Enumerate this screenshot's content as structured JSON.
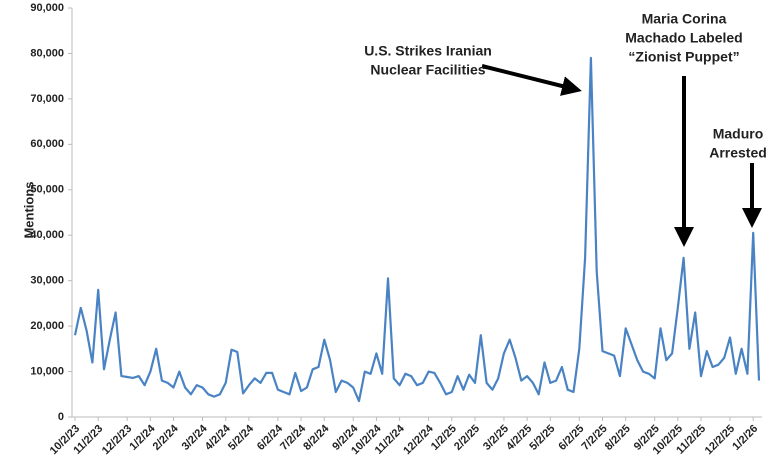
{
  "chart_data": {
    "type": "line",
    "y_label": "Mentions",
    "categories": [
      "10/2/23",
      null,
      null,
      null,
      "11/2/23",
      null,
      null,
      null,
      null,
      "12/2/23",
      null,
      null,
      null,
      "1/2/24",
      null,
      null,
      null,
      "2/2/24",
      null,
      null,
      null,
      null,
      "3/2/24",
      null,
      null,
      null,
      "4/2/24",
      null,
      null,
      null,
      "5/2/24",
      null,
      null,
      null,
      null,
      "6/2/24",
      null,
      null,
      null,
      "7/2/24",
      null,
      null,
      null,
      "8/2/24",
      null,
      null,
      null,
      null,
      "9/2/24",
      null,
      null,
      null,
      "10/2/24",
      null,
      null,
      null,
      "11/2/24",
      null,
      null,
      null,
      null,
      "12/2/24",
      null,
      null,
      null,
      "1/2/25",
      null,
      null,
      null,
      "2/2/25",
      null,
      null,
      null,
      null,
      "3/2/25",
      null,
      null,
      null,
      "4/2/25",
      null,
      null,
      null,
      "5/2/25",
      null,
      null,
      null,
      null,
      "6/2/25",
      null,
      null,
      null,
      "7/2/25",
      null,
      null,
      null,
      "8/2/25",
      null,
      null,
      null,
      null,
      "9/2/25",
      null,
      null,
      null,
      "10/2/25",
      null,
      null,
      null,
      "11/2/25",
      null,
      null,
      null,
      null,
      "12/2/25",
      null,
      null,
      null,
      "1/2/26",
      null
    ],
    "series": [
      {
        "name": "Mentions",
        "color": "#4a83c4",
        "values": [
          18000,
          24000,
          19000,
          12000,
          28000,
          10500,
          17000,
          23000,
          9000,
          8800,
          8600,
          9000,
          7000,
          10000,
          15000,
          8000,
          7500,
          6500,
          10000,
          6500,
          5000,
          7000,
          6500,
          5000,
          4500,
          5000,
          7500,
          14800,
          14300,
          5200,
          7000,
          8500,
          7500,
          9700,
          9700,
          6000,
          5500,
          5000,
          9700,
          5700,
          6500,
          10500,
          11000,
          17000,
          12500,
          5500,
          8000,
          7500,
          6500,
          3500,
          10000,
          9500,
          14000,
          9500,
          30500,
          8500,
          7000,
          9500,
          9000,
          7000,
          7500,
          10000,
          9700,
          7500,
          5000,
          5500,
          9000,
          6000,
          9300,
          7500,
          18000,
          7500,
          6000,
          8500,
          14000,
          17000,
          13000,
          8000,
          9000,
          7500,
          5000,
          12000,
          7500,
          8000,
          11000,
          6000,
          5500,
          15000,
          35000,
          79000,
          32000,
          14500,
          14000,
          13500,
          9000,
          19500,
          16000,
          12500,
          10000,
          9500,
          8500,
          19500,
          12500,
          14000,
          24000,
          35000,
          15000,
          23000,
          9000,
          14500,
          11000,
          11500,
          13000,
          17500,
          9500,
          15000,
          9500,
          40500,
          8000
        ]
      }
    ],
    "ylim": [
      0,
      90000
    ],
    "yticks": [
      0,
      {
        "value": 10000,
        "label": "10,000"
      },
      {
        "value": 20000,
        "label": "20,000"
      },
      {
        "value": 30000,
        "label": "30,000"
      },
      {
        "value": 40000,
        "label": "40,000"
      },
      {
        "value": 50000,
        "label": "50,000"
      },
      {
        "value": 60000,
        "label": "60,000"
      },
      {
        "value": 70000,
        "label": "70,000"
      },
      {
        "value": 80000,
        "label": "80,000"
      },
      {
        "value": 90000,
        "label": "90,000"
      }
    ],
    "annotations": [
      [
        "U.S. Strikes Iranian",
        "Nuclear Facilities"
      ],
      [
        "Maria Corina",
        "Machado Labeled",
        "“Zionist Puppet”"
      ],
      [
        "Maduro",
        "Arrested"
      ]
    ]
  }
}
